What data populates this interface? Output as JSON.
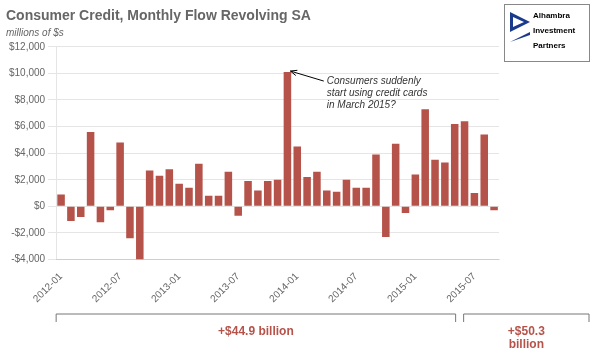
{
  "chart_data": {
    "type": "bar",
    "title": "Consumer Credit, Monthly Flow Revolving SA",
    "subtitle": "millions of $s",
    "categories": [
      "2012-01",
      null,
      null,
      null,
      null,
      null,
      "2012-07",
      null,
      null,
      null,
      null,
      null,
      "2013-01",
      null,
      null,
      null,
      null,
      null,
      "2013-07",
      null,
      null,
      null,
      null,
      null,
      "2014-01",
      null,
      null,
      null,
      null,
      null,
      "2014-07",
      null,
      null,
      null,
      null,
      null,
      "2015-01",
      null,
      null,
      null,
      null,
      null,
      "2015-07",
      null,
      null
    ],
    "values": [
      900,
      -1100,
      -800,
      5600,
      -1200,
      -300,
      4800,
      -2400,
      -4000,
      2700,
      2300,
      2800,
      1700,
      1400,
      3200,
      800,
      800,
      2600,
      -700,
      1900,
      1200,
      1900,
      2000,
      10100,
      4500,
      2200,
      2600,
      1200,
      1100,
      2000,
      1400,
      1400,
      3900,
      -2300,
      4700,
      -500,
      2400,
      7300,
      3500,
      3300,
      6200,
      6400,
      1000,
      5400,
      -300
    ],
    "color": "#b5534a",
    "ylim": [
      -4000,
      12000
    ],
    "yticks": [
      {
        "value": -4000,
        "label": "-$4,000"
      },
      {
        "value": -2000,
        "label": "-$2,000"
      },
      {
        "value": 0,
        "label": "$0"
      },
      {
        "value": 2000,
        "label": "$2,000"
      },
      {
        "value": 4000,
        "label": "$4,000"
      },
      {
        "value": 6000,
        "label": "$6,000"
      },
      {
        "value": 8000,
        "label": "$8,000"
      },
      {
        "value": 10000,
        "label": "$10,000"
      },
      {
        "value": 12000,
        "label": "$12,000"
      }
    ],
    "grid": true,
    "annotations": [
      "Consumers suddenly\nstart using credit cards\nin March 2015?",
      "+$44.9 billion",
      "+$50.3\nbillion",
      "Alhambra",
      "Investment",
      "Partners"
    ]
  }
}
